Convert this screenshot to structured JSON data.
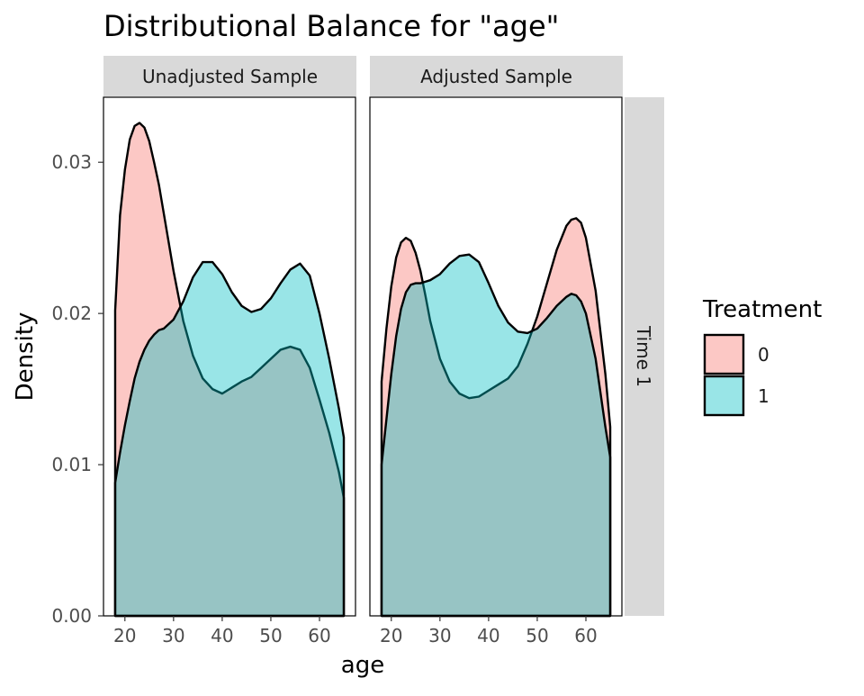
{
  "chart_data": {
    "type": "area",
    "subtype": "density",
    "title": "Distributional Balance for \"age\"",
    "xlabel": "age",
    "ylabel": "Density",
    "xlim": [
      15.6,
      67.4
    ],
    "ylim": [
      0,
      0.0343
    ],
    "x_ticks": [
      20,
      30,
      40,
      50,
      60
    ],
    "y_ticks": [
      0.0,
      0.01,
      0.02,
      0.03
    ],
    "x_tick_labels": [
      "20",
      "30",
      "40",
      "50",
      "60"
    ],
    "y_tick_labels": [
      "0.00",
      "0.01",
      "0.02",
      "0.03"
    ],
    "grid": false,
    "row_strip": "Time 1",
    "legend": {
      "title": "Treatment",
      "position": "right",
      "entries": [
        {
          "label": "0",
          "color": "#F8766D"
        },
        {
          "label": "1",
          "color": "#00BFC4"
        }
      ]
    },
    "fill_opacity": 0.4,
    "panels": [
      {
        "strip": "Unadjusted Sample",
        "series": [
          {
            "name": "0",
            "color": "#F8766D",
            "x": [
              18,
              19,
              20,
              21,
              22,
              23,
              24,
              25,
              26,
              27,
              28,
              30,
              32,
              34,
              36,
              38,
              40,
              42,
              44,
              46,
              48,
              50,
              52,
              54,
              56,
              58,
              60,
              62,
              64,
              65
            ],
            "y": [
              0.0202,
              0.0265,
              0.0295,
              0.0315,
              0.0324,
              0.0326,
              0.0323,
              0.0314,
              0.03,
              0.0285,
              0.0266,
              0.0228,
              0.0195,
              0.0172,
              0.0157,
              0.015,
              0.0147,
              0.0151,
              0.0155,
              0.0158,
              0.0164,
              0.017,
              0.0176,
              0.0178,
              0.0176,
              0.0164,
              0.0143,
              0.0121,
              0.0095,
              0.0078
            ]
          },
          {
            "name": "1",
            "color": "#00BFC4",
            "x": [
              18,
              19,
              20,
              21,
              22,
              23,
              24,
              25,
              26,
              27,
              28,
              30,
              32,
              34,
              36,
              38,
              40,
              42,
              44,
              46,
              48,
              50,
              52,
              54,
              56,
              58,
              60,
              62,
              64,
              65
            ],
            "y": [
              0.0088,
              0.0108,
              0.0126,
              0.0142,
              0.0157,
              0.0168,
              0.0176,
              0.0182,
              0.0186,
              0.0189,
              0.019,
              0.0196,
              0.0208,
              0.0224,
              0.0234,
              0.0234,
              0.0226,
              0.0214,
              0.0205,
              0.0201,
              0.0203,
              0.021,
              0.022,
              0.0229,
              0.0233,
              0.0225,
              0.02,
              0.017,
              0.0137,
              0.0118
            ]
          }
        ]
      },
      {
        "strip": "Adjusted Sample",
        "series": [
          {
            "name": "0",
            "color": "#F8766D",
            "x": [
              18,
              19,
              20,
              21,
              22,
              23,
              24,
              25,
              26,
              27,
              28,
              30,
              32,
              34,
              36,
              38,
              40,
              42,
              44,
              46,
              48,
              50,
              52,
              54,
              56,
              57,
              58,
              59,
              60,
              62,
              64,
              65
            ],
            "y": [
              0.0155,
              0.019,
              0.0218,
              0.0237,
              0.0247,
              0.025,
              0.0248,
              0.024,
              0.0228,
              0.0212,
              0.0195,
              0.017,
              0.0155,
              0.0147,
              0.0144,
              0.0145,
              0.0149,
              0.0153,
              0.0157,
              0.0165,
              0.018,
              0.0198,
              0.022,
              0.0242,
              0.0258,
              0.0262,
              0.0263,
              0.026,
              0.025,
              0.0215,
              0.016,
              0.0125
            ]
          },
          {
            "name": "1",
            "color": "#00BFC4",
            "x": [
              18,
              19,
              20,
              21,
              22,
              23,
              24,
              25,
              26,
              27,
              28,
              30,
              32,
              34,
              36,
              38,
              40,
              42,
              44,
              46,
              48,
              50,
              52,
              54,
              56,
              57,
              58,
              59,
              60,
              62,
              64,
              65
            ],
            "y": [
              0.01,
              0.013,
              0.016,
              0.0185,
              0.0203,
              0.0214,
              0.0219,
              0.022,
              0.022,
              0.0221,
              0.0222,
              0.0226,
              0.0233,
              0.0238,
              0.0239,
              0.0234,
              0.022,
              0.0205,
              0.0194,
              0.0188,
              0.0187,
              0.019,
              0.0197,
              0.0205,
              0.0211,
              0.0213,
              0.0212,
              0.0208,
              0.02,
              0.017,
              0.0125,
              0.0105
            ]
          }
        ]
      }
    ]
  }
}
